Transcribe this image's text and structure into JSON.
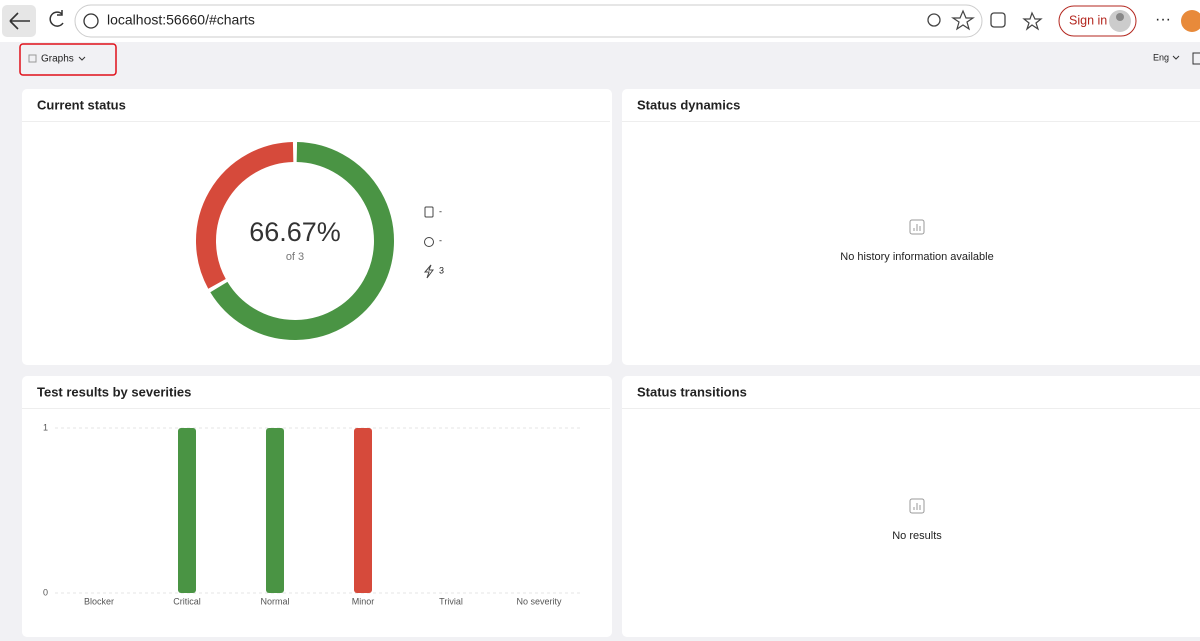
{
  "browser": {
    "url": "localhost:56660/#charts",
    "sign_in": "Sign in"
  },
  "toolbar": {
    "menu": "Graphs",
    "language": "Eng"
  },
  "chart_data": [
    {
      "type": "donut",
      "title": "Current status",
      "values": [
        2,
        1
      ],
      "colors": [
        "#4a9444",
        "#d64a3b"
      ],
      "center_label": "66.67%",
      "center_sublabel": "of 3",
      "stats": [
        "-",
        "-",
        "3"
      ]
    },
    {
      "type": "bar",
      "title": "Test results by severities",
      "categories": [
        "Blocker",
        "Critical",
        "Normal",
        "Minor",
        "Trivial",
        "No severity"
      ],
      "values": [
        0,
        1,
        1,
        1,
        0,
        0
      ],
      "colors": [
        "#4a9444",
        "#4a9444",
        "#4a9444",
        "#d64a3b",
        "#4a9444",
        "#4a9444"
      ],
      "ylim": [
        0,
        1
      ],
      "yticks": [
        0,
        1
      ],
      "grid": true
    }
  ],
  "panels": [
    {
      "title": "Status dynamics",
      "message": "No history information available"
    },
    {
      "title": "Status transitions",
      "message": "No results"
    }
  ]
}
